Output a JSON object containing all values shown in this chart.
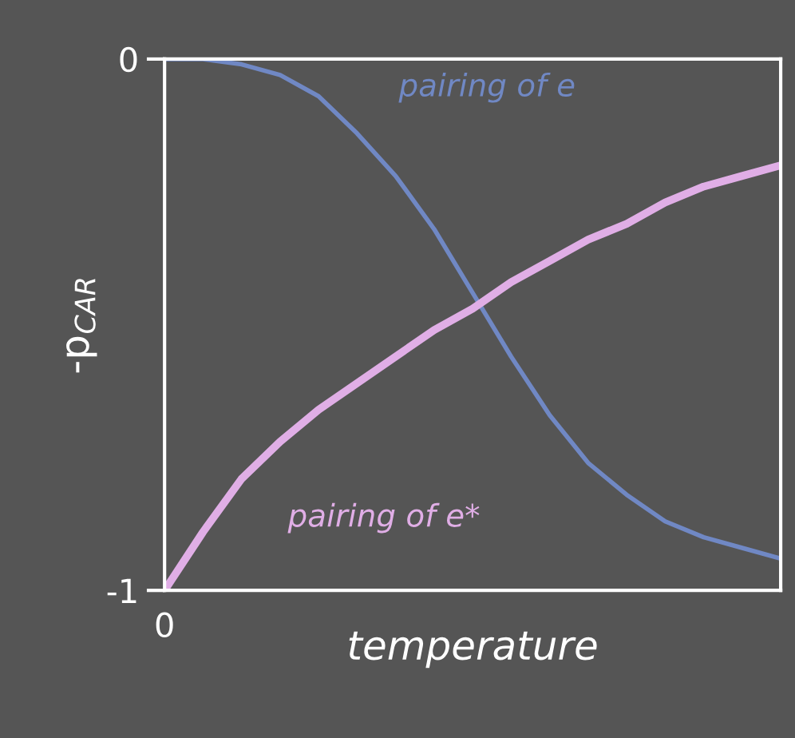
{
  "chart_data": {
    "type": "line",
    "xlabel": "temperature",
    "ylabel": "-p$_{CAR}$",
    "categories": [
      null,
      null,
      null,
      null,
      null,
      null,
      null,
      null,
      null,
      null,
      null,
      null,
      null,
      null,
      null,
      null,
      null
    ],
    "series": [
      {
        "name": "pairing of e",
        "color": "#7088c4",
        "values": [
          0,
          0,
          -0.01,
          -0.03,
          -0.07,
          -0.14,
          -0.22,
          -0.32,
          -0.44,
          -0.56,
          -0.67,
          -0.76,
          -0.82,
          -0.87,
          -0.9,
          -0.92,
          -0.94
        ]
      },
      {
        "name": "pairing of e*",
        "color": "#e0aee6",
        "values": [
          -1,
          -0.89,
          -0.79,
          -0.72,
          -0.66,
          -0.61,
          -0.56,
          -0.51,
          -0.47,
          -0.42,
          -0.38,
          -0.34,
          -0.31,
          -0.27,
          -0.24,
          -0.22,
          -0.2
        ]
      }
    ],
    "annotations": [
      "0"
    ],
    "ylim": [
      -1,
      0
    ],
    "yticks": [
      -1,
      0
    ],
    "legend": false,
    "marker": "none",
    "line_style": "solid"
  }
}
